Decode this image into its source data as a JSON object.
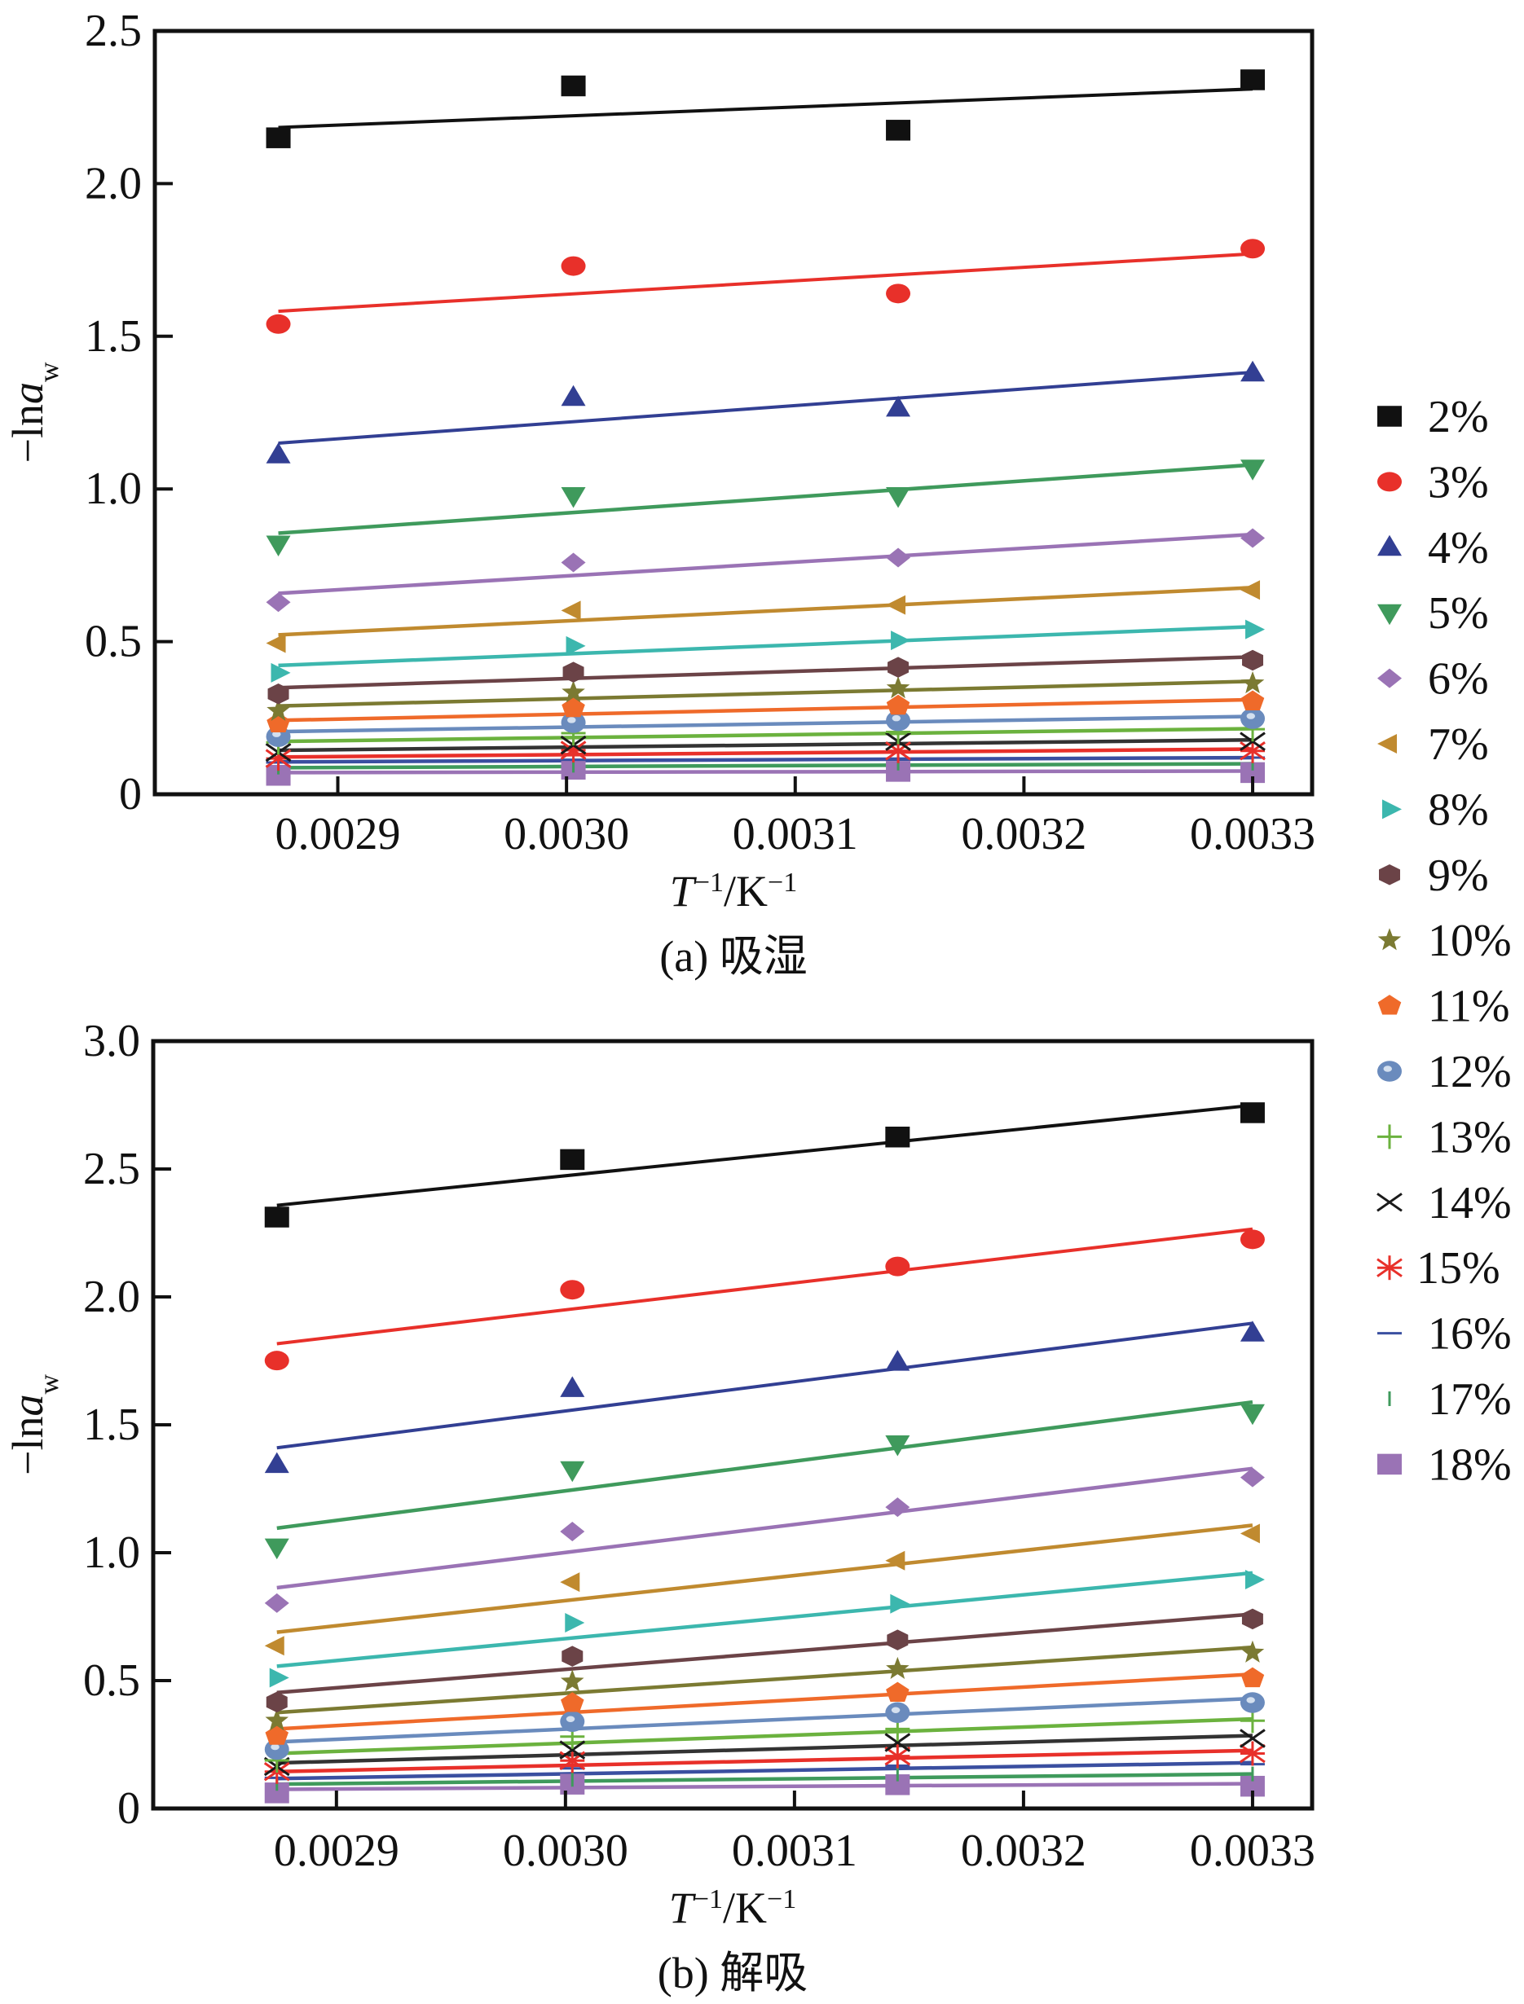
{
  "chart_data": [
    {
      "type": "scatter",
      "subtype": "scatter-with-linear-fits",
      "panel": "a",
      "caption": "(a) 吸湿",
      "xlabel": {
        "main": "T",
        "sup1": "−1",
        "sep": "/K",
        "sup2": "−1"
      },
      "ylabel": {
        "prefix": "−ln",
        "var": "a",
        "sub": "w"
      },
      "xlim": [
        0.00282,
        0.003326
      ],
      "ylim": [
        0,
        2.5
      ],
      "xticks": [
        0.0029,
        0.003,
        0.0031,
        0.0032,
        0.0033
      ],
      "xtick_labels": [
        "0.0029",
        "0.0030",
        "0.0031",
        "0.0032",
        "0.0033"
      ],
      "yticks": [
        0,
        0.5,
        1.0,
        1.5,
        2.0,
        2.5
      ],
      "ytick_labels": [
        "0",
        "0.5",
        "1.0",
        "1.5",
        "2.0",
        "2.5"
      ],
      "grid": false,
      "x": [
        0.002874,
        0.003003,
        0.003145,
        0.0033
      ],
      "series": [
        {
          "name": "2%",
          "values": [
            2.15,
            2.32,
            2.175,
            2.34
          ],
          "fit": [
            2.184,
            2.31
          ]
        },
        {
          "name": "3%",
          "values": [
            1.54,
            1.73,
            1.64,
            1.787
          ],
          "fit": [
            1.582,
            1.77
          ]
        },
        {
          "name": "4%",
          "values": [
            1.112,
            1.3,
            1.265,
            1.38
          ],
          "fit": [
            1.15,
            1.382
          ]
        },
        {
          "name": "5%",
          "values": [
            0.819,
            0.978,
            0.978,
            1.068
          ],
          "fit": [
            0.855,
            1.079
          ]
        },
        {
          "name": "6%",
          "values": [
            0.629,
            0.759,
            0.775,
            0.839
          ],
          "fit": [
            0.658,
            0.851
          ]
        },
        {
          "name": "7%",
          "values": [
            0.495,
            0.602,
            0.62,
            0.669
          ],
          "fit": [
            0.522,
            0.677
          ]
        },
        {
          "name": "8%",
          "values": [
            0.398,
            0.486,
            0.504,
            0.54
          ],
          "fit": [
            0.422,
            0.549
          ]
        },
        {
          "name": "9%",
          "values": [
            0.329,
            0.4,
            0.416,
            0.439
          ],
          "fit": [
            0.349,
            0.45
          ]
        },
        {
          "name": "10%",
          "values": [
            0.273,
            0.333,
            0.347,
            0.363
          ],
          "fit": [
            0.289,
            0.37
          ]
        },
        {
          "name": "11%",
          "values": [
            0.232,
            0.282,
            0.29,
            0.304
          ],
          "fit": [
            0.242,
            0.31
          ]
        },
        {
          "name": "12%",
          "values": [
            0.189,
            0.235,
            0.241,
            0.248
          ],
          "fit": [
            0.205,
            0.255
          ]
        },
        {
          "name": "13%",
          "values": [
            0.17,
            0.2,
            0.204,
            0.213
          ],
          "fit": [
            0.173,
            0.215
          ]
        },
        {
          "name": "14%",
          "values": [
            0.137,
            0.161,
            0.173,
            0.173
          ],
          "fit": [
            0.144,
            0.178
          ]
        },
        {
          "name": "15%",
          "values": [
            0.117,
            0.144,
            0.142,
            0.142
          ],
          "fit": [
            0.122,
            0.148
          ]
        },
        {
          "name": "16%",
          "values": [
            0.104,
            0.113,
            0.115,
            0.12
          ],
          "fit": [
            0.106,
            0.12
          ]
        },
        {
          "name": "17%",
          "values": [
            0.089,
            0.095,
            0.102,
            0.102
          ],
          "fit": [
            0.087,
            0.1
          ]
        },
        {
          "name": "18%",
          "values": [
            0.062,
            0.082,
            0.075,
            0.071
          ],
          "fit": [
            0.071,
            0.076
          ]
        }
      ]
    },
    {
      "type": "scatter",
      "subtype": "scatter-with-linear-fits",
      "panel": "b",
      "caption": "(b) 解吸",
      "xlabel": {
        "main": "T",
        "sup1": "−1",
        "sep": "/K",
        "sup2": "−1"
      },
      "ylabel": {
        "prefix": "−ln",
        "var": "a",
        "sub": "w"
      },
      "xlim": [
        0.00282,
        0.003326
      ],
      "ylim": [
        0,
        3.0
      ],
      "xticks": [
        0.0029,
        0.003,
        0.0031,
        0.0032,
        0.0033
      ],
      "xtick_labels": [
        "0.0029",
        "0.0030",
        "0.0031",
        "0.0032",
        "0.0033"
      ],
      "yticks": [
        0,
        0.5,
        1.0,
        1.5,
        2.0,
        2.5,
        3.0
      ],
      "ytick_labels": [
        "0",
        "0.5",
        "1.0",
        "1.5",
        "2.0",
        "2.5",
        "3.0"
      ],
      "grid": false,
      "x": [
        0.002874,
        0.003003,
        0.003145,
        0.0033
      ],
      "series": [
        {
          "name": "2%",
          "values": [
            2.312,
            2.537,
            2.625,
            2.72
          ],
          "fit": [
            2.358,
            2.749
          ]
        },
        {
          "name": "3%",
          "values": [
            1.751,
            2.028,
            2.119,
            2.225
          ],
          "fit": [
            1.817,
            2.265
          ]
        },
        {
          "name": "4%",
          "values": [
            1.345,
            1.642,
            1.745,
            1.859
          ],
          "fit": [
            1.41,
            1.897
          ]
        },
        {
          "name": "5%",
          "values": [
            1.022,
            1.324,
            1.425,
            1.547
          ],
          "fit": [
            1.096,
            1.589
          ]
        },
        {
          "name": "6%",
          "values": [
            0.803,
            1.083,
            1.178,
            1.294
          ],
          "fit": [
            0.863,
            1.329
          ]
        },
        {
          "name": "7%",
          "values": [
            0.636,
            0.885,
            0.969,
            1.075
          ],
          "fit": [
            0.689,
            1.107
          ]
        },
        {
          "name": "8%",
          "values": [
            0.511,
            0.726,
            0.8,
            0.895
          ],
          "fit": [
            0.556,
            0.921
          ]
        },
        {
          "name": "9%",
          "values": [
            0.416,
            0.595,
            0.659,
            0.741
          ],
          "fit": [
            0.453,
            0.76
          ]
        },
        {
          "name": "10%",
          "values": [
            0.343,
            0.496,
            0.545,
            0.609
          ],
          "fit": [
            0.375,
            0.63
          ]
        },
        {
          "name": "11%",
          "values": [
            0.284,
            0.412,
            0.452,
            0.509
          ],
          "fit": [
            0.311,
            0.525
          ]
        },
        {
          "name": "12%",
          "values": [
            0.231,
            0.34,
            0.375,
            0.414
          ],
          "fit": [
            0.26,
            0.43
          ]
        },
        {
          "name": "13%",
          "values": [
            0.188,
            0.281,
            0.311,
            0.343
          ],
          "fit": [
            0.215,
            0.35
          ]
        },
        {
          "name": "14%",
          "values": [
            0.164,
            0.229,
            0.258,
            0.274
          ],
          "fit": [
            0.178,
            0.285
          ]
        },
        {
          "name": "15%",
          "values": [
            0.144,
            0.187,
            0.205,
            0.215
          ],
          "fit": [
            0.144,
            0.227
          ]
        },
        {
          "name": "16%",
          "values": [
            0.12,
            0.157,
            0.167,
            0.173
          ],
          "fit": [
            0.117,
            0.179
          ]
        },
        {
          "name": "17%",
          "values": [
            0.098,
            0.114,
            0.135,
            0.135
          ],
          "fit": [
            0.095,
            0.135
          ]
        },
        {
          "name": "18%",
          "values": [
            0.061,
            0.095,
            0.093,
            0.087
          ],
          "fit": [
            0.075,
            0.097
          ]
        }
      ]
    }
  ],
  "legend": {
    "placement": "right",
    "items": [
      {
        "label": "2%",
        "marker": "square",
        "color": "#111111"
      },
      {
        "label": "3%",
        "marker": "circle",
        "color": "#e8302a"
      },
      {
        "label": "4%",
        "marker": "triangle-up",
        "color": "#323f93"
      },
      {
        "label": "5%",
        "marker": "triangle-down",
        "color": "#3f9a5c"
      },
      {
        "label": "6%",
        "marker": "diamond",
        "color": "#9a73b5"
      },
      {
        "label": "7%",
        "marker": "triangle-left",
        "color": "#c08a2f"
      },
      {
        "label": "8%",
        "marker": "triangle-right",
        "color": "#3cb7ae"
      },
      {
        "label": "9%",
        "marker": "hexagon",
        "color": "#6b4347"
      },
      {
        "label": "10%",
        "marker": "star",
        "color": "#7b7a32"
      },
      {
        "label": "11%",
        "marker": "pentagon",
        "color": "#ef6a2a"
      },
      {
        "label": "12%",
        "marker": "sphere",
        "color": "#6a8bbd"
      },
      {
        "label": "13%",
        "marker": "plus",
        "color": "#6bb23e"
      },
      {
        "label": "14%",
        "marker": "x",
        "color": "#1a1a1a"
      },
      {
        "label": "15%",
        "marker": "asterisk",
        "color": "#e8302a"
      },
      {
        "label": "16%",
        "marker": "hline",
        "color": "#3a4fa0"
      },
      {
        "label": "17%",
        "marker": "vline",
        "color": "#3f9a5c"
      },
      {
        "label": "18%",
        "marker": "square",
        "color": "#9a73b5"
      }
    ]
  },
  "fit_line_colors": {
    "2%": "#111111",
    "3%": "#e8302a",
    "4%": "#323f93",
    "5%": "#3f9a5c",
    "6%": "#9a73b5",
    "7%": "#c08a2f",
    "8%": "#3cb7ae",
    "9%": "#6b4347",
    "10%": "#7b7a32",
    "11%": "#ef6a2a",
    "12%": "#6a8bbd",
    "13%": "#6bb23e",
    "14%": "#333333",
    "15%": "#e8302a",
    "16%": "#3a4fa0",
    "17%": "#3f9a5c",
    "18%": "#9a73b5"
  }
}
